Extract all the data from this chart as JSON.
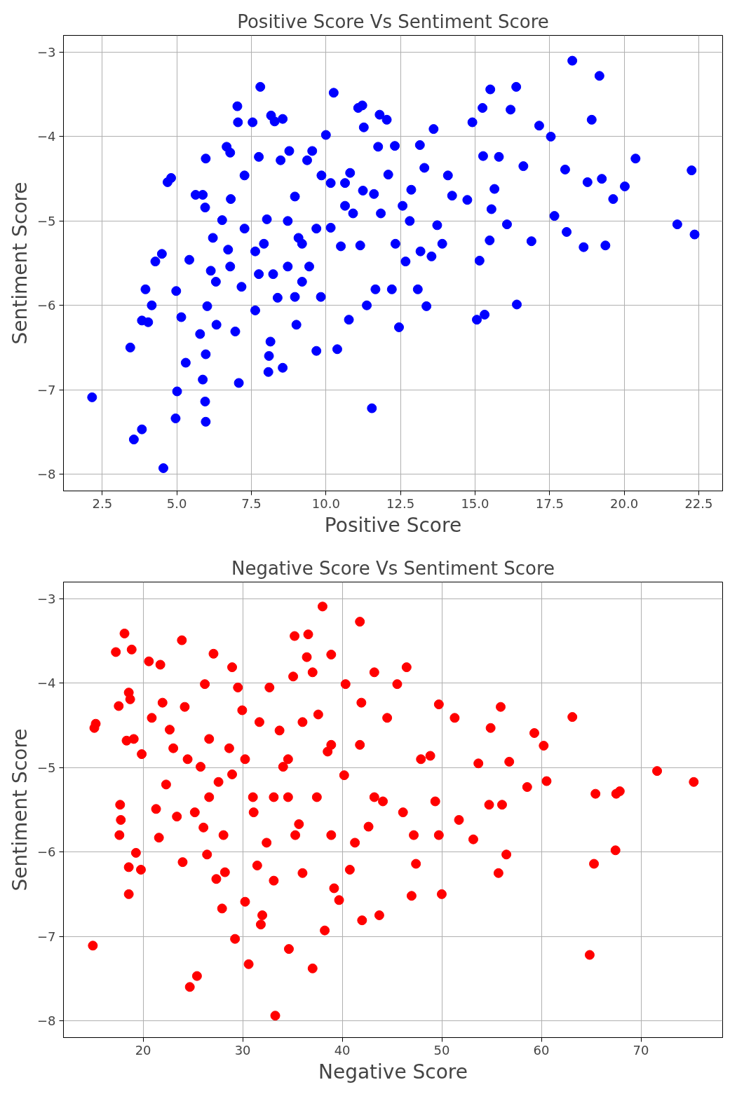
{
  "chart_data": [
    {
      "type": "scatter",
      "title": "Positive Score Vs Sentiment Score",
      "xlabel": "Positive Score",
      "ylabel": "Sentiment Score",
      "color": "#0000ff",
      "marker": "circle",
      "grid": true,
      "xlim": [
        1.2,
        23.3
      ],
      "ylim": [
        -8.2,
        -2.8
      ],
      "xticks": [
        {
          "value": 2.5,
          "label": "2.5"
        },
        {
          "value": 5,
          "label": "5.0"
        },
        {
          "value": 7.5,
          "label": "7.5"
        },
        {
          "value": 10,
          "label": "10.0"
        },
        {
          "value": 12.5,
          "label": "12.5"
        },
        {
          "value": 15,
          "label": "15.0"
        },
        {
          "value": 17.5,
          "label": "17.5"
        },
        {
          "value": 20,
          "label": "20.0"
        },
        {
          "value": 22.5,
          "label": "22.5"
        }
      ],
      "yticks": [
        {
          "value": -8,
          "label": "−8"
        },
        {
          "value": -7,
          "label": "−7"
        },
        {
          "value": -6,
          "label": "−6"
        },
        {
          "value": -5,
          "label": "−5"
        },
        {
          "value": -4,
          "label": "−4"
        },
        {
          "value": -3,
          "label": "−3"
        }
      ],
      "x": [
        2.16,
        3.44,
        3.56,
        3.83,
        3.83,
        3.95,
        4.04,
        4.16,
        4.28,
        4.5,
        4.55,
        4.69,
        4.81,
        4.98,
        5.01,
        4.96,
        5.15,
        5.3,
        5.42,
        5.63,
        5.78,
        5.87,
        5.97,
        5.95,
        5.87,
        5.95,
        5.97,
        5.97,
        6.02,
        6.14,
        6.21,
        6.33,
        6.52,
        6.67,
        6.79,
        6.72,
        6.81,
        6.96,
        7.03,
        7.05,
        7.08,
        7.17,
        7.27,
        7.54,
        7.8,
        7.63,
        7.75,
        7.92,
        8.02,
        8.07,
        8.09,
        8.14,
        8.16,
        8.28,
        8.55,
        8.55,
        8.48,
        8.38,
        8.72,
        8.77,
        8.96,
        9.01,
        9.08,
        9.2,
        9.37,
        9.54,
        9.68,
        9.83,
        9.85,
        10.0,
        10.16,
        10.26,
        10.38,
        10.5,
        10.77,
        10.81,
        10.91,
        11.08,
        11.22,
        11.15,
        11.27,
        11.37,
        11.54,
        11.61,
        11.66,
        11.75,
        11.8,
        12.04,
        12.09,
        12.21,
        12.31,
        12.45,
        12.67,
        12.86,
        13.08,
        13.15,
        13.3,
        13.37,
        13.54,
        13.61,
        13.73,
        13.9,
        14.09,
        14.23,
        14.74,
        14.91,
        15.06,
        15.15,
        15.25,
        15.27,
        15.32,
        15.49,
        15.51,
        15.55,
        15.65,
        15.8,
        16.07,
        16.19,
        16.38,
        16.4,
        16.62,
        16.89,
        17.15,
        17.54,
        17.66,
        18.02,
        18.07,
        18.26,
        18.64,
        18.77,
        18.91,
        19.17,
        19.25,
        19.37,
        19.63,
        20.02,
        20.38,
        21.78,
        22.26,
        22.36,
        8.23,
        8.72,
        9.2,
        9.68,
        10.64,
        10.64,
        11.24,
        11.84,
        12.57,
        12.81,
        13.17,
        7.63,
        7.27,
        7.75,
        6.79,
        6.31,
        8.96,
        9.44,
        10.16,
        12.33
      ],
      "values": [
        -7.09,
        -6.5,
        -7.59,
        -7.47,
        -6.18,
        -5.81,
        -6.2,
        -6.0,
        -5.48,
        -5.39,
        -7.93,
        -4.54,
        -4.49,
        -5.83,
        -7.02,
        -7.34,
        -6.14,
        -6.68,
        -5.46,
        -4.69,
        -6.34,
        -4.69,
        -4.26,
        -4.84,
        -6.88,
        -7.14,
        -7.38,
        -6.58,
        -6.01,
        -5.59,
        -5.2,
        -6.23,
        -4.99,
        -4.12,
        -4.19,
        -5.34,
        -4.74,
        -6.31,
        -3.64,
        -3.83,
        -6.92,
        -5.78,
        -4.46,
        -3.83,
        -3.41,
        -6.06,
        -4.24,
        -5.27,
        -4.98,
        -6.79,
        -6.6,
        -6.43,
        -3.75,
        -3.82,
        -3.79,
        -6.74,
        -4.28,
        -5.91,
        -5.54,
        -4.17,
        -4.71,
        -6.23,
        -5.2,
        -5.72,
        -4.28,
        -4.17,
        -6.54,
        -5.9,
        -4.46,
        -3.98,
        -5.08,
        -3.48,
        -6.52,
        -5.3,
        -6.17,
        -4.43,
        -4.91,
        -3.66,
        -3.63,
        -5.29,
        -3.89,
        -6.0,
        -7.22,
        -4.68,
        -5.81,
        -4.12,
        -3.74,
        -3.8,
        -4.45,
        -5.81,
        -4.11,
        -6.26,
        -5.48,
        -4.63,
        -5.81,
        -4.1,
        -4.37,
        -6.01,
        -5.42,
        -3.91,
        -5.05,
        -5.27,
        -4.46,
        -4.7,
        -4.75,
        -3.83,
        -6.17,
        -5.47,
        -3.66,
        -4.23,
        -6.11,
        -5.23,
        -3.44,
        -4.86,
        -4.62,
        -4.24,
        -5.04,
        -3.68,
        -3.41,
        -5.99,
        -4.35,
        -5.24,
        -3.87,
        -4.0,
        -4.94,
        -4.39,
        -5.13,
        -3.1,
        -5.31,
        -4.54,
        -3.8,
        -3.28,
        -4.5,
        -5.29,
        -4.74,
        -4.59,
        -4.26,
        -5.04,
        -4.4,
        -5.16,
        -5.63,
        -5.0,
        -5.27,
        -5.09,
        -4.82,
        -4.55,
        -4.64,
        -4.91,
        -4.82,
        -5.0,
        -5.36,
        -5.36,
        -5.09,
        -5.63,
        -5.54,
        -5.72,
        -5.9,
        -5.54,
        -4.55,
        -5.27
      ]
    },
    {
      "type": "scatter",
      "title": "Negative Score Vs Sentiment Score",
      "xlabel": "Negative Score",
      "ylabel": "Sentiment Score",
      "color": "#ff0000",
      "marker": "circle",
      "grid": true,
      "xlim": [
        12,
        78.2
      ],
      "ylim": [
        -8.2,
        -2.8
      ],
      "xticks": [
        20,
        30,
        40,
        50,
        60,
        70
      ],
      "yticks": [
        {
          "value": -8,
          "label": "−8"
        },
        {
          "value": -7,
          "label": "−7"
        },
        {
          "value": -6,
          "label": "−6"
        },
        {
          "value": -5,
          "label": "−5"
        },
        {
          "value": -4,
          "label": "−4"
        },
        {
          "value": -3,
          "label": "−3"
        }
      ],
      "x": [
        14.95,
        15.1,
        15.24,
        17.26,
        17.55,
        17.69,
        17.62,
        17.76,
        18.13,
        18.34,
        18.56,
        18.56,
        18.56,
        18.7,
        18.85,
        19.06,
        19.28,
        19.78,
        19.86,
        20.58,
        20.87,
        21.3,
        21.59,
        21.73,
        21.95,
        22.31,
        22.67,
        23.03,
        23.39,
        23.89,
        23.97,
        24.18,
        24.69,
        25.41,
        25.77,
        26.06,
        26.2,
        26.42,
        26.63,
        27.07,
        27.35,
        27.57,
        27.93,
        28.22,
        28.65,
        28.94,
        29.23,
        29.52,
        29.95,
        30.24,
        30.6,
        31.03,
        31.46,
        31.82,
        31.97,
        32.4,
        32.69,
        33.12,
        33.27,
        33.7,
        34.06,
        34.56,
        34.64,
        35.07,
        35.21,
        35.65,
        36.01,
        36.44,
        36.58,
        37.02,
        37.02,
        37.59,
        38.02,
        38.24,
        38.53,
        38.89,
        39.18,
        39.68,
        40.19,
        40.76,
        41.27,
        41.77,
        41.92,
        41.99,
        42.64,
        43.22,
        43.72,
        44.08,
        44.51,
        45.52,
        46.1,
        46.46,
        46.96,
        47.18,
        47.4,
        47.9,
        48.84,
        49.34,
        49.7,
        49.99,
        49.7,
        51.29,
        51.72,
        53.16,
        53.67,
        54.75,
        54.9,
        55.69,
        55.91,
        56.05,
        56.48,
        56.77,
        58.57,
        59.29,
        60.23,
        60.52,
        63.11,
        64.85,
        65.28,
        65.43,
        67.44,
        67.51,
        67.87,
        71.62,
        75.3,
        24.47,
        26.63,
        28.07,
        30.24,
        31.68,
        33.12,
        34.56,
        36.01,
        37.45,
        38.89,
        40.33,
        41.77,
        43.22,
        25.19,
        28.94,
        31.1,
        35.28,
        38.89
      ],
      "values": [
        -7.11,
        -4.53,
        -4.48,
        -3.63,
        -4.27,
        -5.44,
        -5.8,
        -5.62,
        -3.41,
        -4.68,
        -6.5,
        -6.18,
        -4.11,
        -4.19,
        -3.6,
        -4.66,
        -6.01,
        -6.21,
        -4.84,
        -3.74,
        -4.41,
        -5.49,
        -5.83,
        -3.78,
        -4.23,
        -5.2,
        -4.55,
        -4.77,
        -5.58,
        -3.49,
        -6.12,
        -4.28,
        -7.6,
        -7.47,
        -4.99,
        -5.71,
        -4.01,
        -6.03,
        -4.66,
        -3.65,
        -6.32,
        -5.17,
        -6.67,
        -6.24,
        -4.77,
        -3.81,
        -7.03,
        -4.05,
        -4.32,
        -6.59,
        -7.33,
        -5.35,
        -6.16,
        -6.86,
        -6.75,
        -5.89,
        -4.05,
        -6.34,
        -7.94,
        -4.56,
        -4.99,
        -5.35,
        -7.15,
        -3.92,
        -3.44,
        -5.67,
        -6.25,
        -3.69,
        -3.42,
        -7.38,
        -3.87,
        -4.37,
        -3.09,
        -6.93,
        -4.81,
        -3.66,
        -6.43,
        -6.57,
        -5.09,
        -6.21,
        -5.89,
        -3.27,
        -4.23,
        -6.81,
        -5.7,
        -3.87,
        -6.75,
        -5.4,
        -4.41,
        -4.01,
        -5.53,
        -3.81,
        -6.52,
        -5.8,
        -6.14,
        -4.9,
        -4.86,
        -5.4,
        -4.25,
        -6.5,
        -5.8,
        -4.41,
        -5.62,
        -5.85,
        -4.95,
        -5.44,
        -4.53,
        -6.25,
        -4.28,
        -5.44,
        -6.03,
        -4.93,
        -5.23,
        -4.59,
        -4.74,
        -5.16,
        -4.4,
        -7.22,
        -6.14,
        -5.31,
        -5.98,
        -5.31,
        -5.28,
        -5.04,
        -5.17,
        -4.9,
        -5.35,
        -5.8,
        -4.9,
        -4.46,
        -5.35,
        -4.9,
        -4.46,
        -5.35,
        -4.73,
        -4.01,
        -4.73,
        -5.35,
        -5.53,
        -5.08,
        -5.53,
        -5.8,
        -5.8
      ]
    }
  ]
}
